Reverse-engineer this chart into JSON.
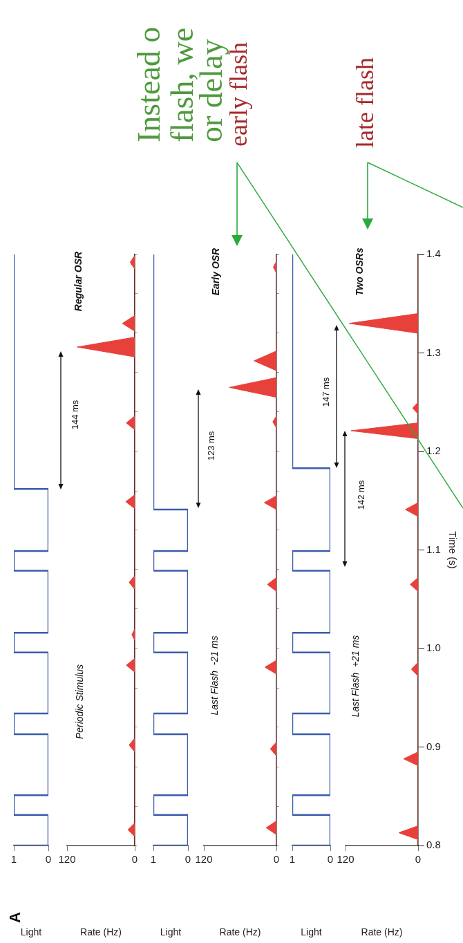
{
  "chart_data": [
    {
      "type": "step",
      "orientation": "horizontal",
      "xlabel": "Light",
      "ylim": [
        0.8,
        1.4
      ],
      "xlim": [
        1,
        0
      ],
      "xticks": [
        1,
        0
      ],
      "tick_labels": "x",
      "annotations": [
        "A"
      ],
      "x": [
        0.8,
        0.831,
        0.851,
        0.913,
        0.934,
        0.996,
        1.016,
        1.079,
        1.099,
        1.162,
        1.182,
        1.4
      ],
      "series": [
        {
          "color": "#3b5bad",
          "values": [
            1,
            0,
            1,
            0,
            1,
            0,
            1,
            0,
            1,
            0,
            1,
            1
          ]
        }
      ]
    },
    {
      "type": "area",
      "orientation": "horizontal",
      "xlabel": "Rate (Hz)",
      "ylim": [
        0.8,
        1.4
      ],
      "xlim": [
        120,
        0
      ],
      "xticks": [
        120,
        0
      ],
      "tick_labels": "x",
      "annotations": [
        "Periodic Stimulus",
        "144 ms",
        "Regular OSR"
      ],
      "yticks": [
        {
          "value": 0.8,
          "label": null
        },
        {
          "value": 0.84,
          "label": null
        },
        {
          "value": 0.88,
          "label": null
        },
        {
          "value": 0.92,
          "label": null
        },
        {
          "value": 0.96,
          "label": null
        },
        {
          "value": 1,
          "label": null
        },
        {
          "value": 1.04,
          "label": null
        },
        {
          "value": 1.08,
          "label": null
        },
        {
          "value": 1.12,
          "label": null
        },
        {
          "value": 1.16,
          "label": null
        },
        {
          "value": 1.2,
          "label": null
        },
        {
          "value": 1.24,
          "label": null
        },
        {
          "value": 1.28,
          "label": null
        },
        {
          "value": 1.32,
          "label": null
        },
        {
          "value": 1.36,
          "label": null
        },
        {
          "value": 1.4,
          "label": null
        }
      ],
      "x": [
        0.8,
        0.809,
        0.816,
        0.823,
        0.895,
        0.902,
        0.909,
        0.976,
        0.983,
        0.99,
        1.008,
        1.014,
        1.02,
        1.06,
        1.067,
        1.074,
        1.142,
        1.149,
        1.156,
        1.222,
        1.229,
        1.236,
        1.296,
        1.306,
        1.316,
        1.322,
        1.33,
        1.338,
        1.385,
        1.392,
        1.399,
        1.4
      ],
      "series": [
        {
          "color": "#e8403a",
          "values": [
            0,
            0,
            12,
            0,
            0,
            10,
            0,
            0,
            15,
            0,
            0,
            5,
            0,
            0,
            10,
            0,
            0,
            16,
            0,
            0,
            15,
            0,
            0,
            102,
            0,
            0,
            22,
            0,
            0,
            8,
            0,
            0
          ]
        }
      ]
    },
    {
      "type": "step",
      "orientation": "horizontal",
      "xlabel": "Light",
      "ylim": [
        0.8,
        1.4
      ],
      "xlim": [
        1,
        0
      ],
      "xticks": [
        1,
        0
      ],
      "tick_labels": "x",
      "annotations": [
        "Instead o",
        "flash, we",
        "or delay",
        "early flash"
      ],
      "x": [
        0.8,
        0.831,
        0.851,
        0.913,
        0.934,
        0.996,
        1.016,
        1.079,
        1.099,
        1.141,
        1.16,
        1.4
      ],
      "series": [
        {
          "color": "#3b5bad",
          "values": [
            1,
            0,
            1,
            0,
            1,
            0,
            1,
            0,
            1,
            0,
            1,
            1
          ]
        }
      ]
    },
    {
      "type": "area",
      "orientation": "horizontal",
      "xlabel": "Rate (Hz)",
      "ylim": [
        0.8,
        1.4
      ],
      "xlim": [
        120,
        0
      ],
      "xticks": [
        120,
        0
      ],
      "tick_labels": "x",
      "annotations": [
        "Last Flash  -21 ms",
        "123 ms",
        "Early OSR"
      ],
      "yticks": [
        {
          "value": 0.8,
          "label": null
        },
        {
          "value": 0.84,
          "label": null
        },
        {
          "value": 0.88,
          "label": null
        },
        {
          "value": 0.92,
          "label": null
        },
        {
          "value": 0.96,
          "label": null
        },
        {
          "value": 1,
          "label": null
        },
        {
          "value": 1.04,
          "label": null
        },
        {
          "value": 1.08,
          "label": null
        },
        {
          "value": 1.12,
          "label": null
        },
        {
          "value": 1.16,
          "label": null
        },
        {
          "value": 1.2,
          "label": null
        },
        {
          "value": 1.24,
          "label": null
        },
        {
          "value": 1.28,
          "label": null
        },
        {
          "value": 1.32,
          "label": null
        },
        {
          "value": 1.36,
          "label": null
        },
        {
          "value": 1.4,
          "label": null
        }
      ],
      "x": [
        0.8,
        0.811,
        0.818,
        0.825,
        0.891,
        0.898,
        0.905,
        0.974,
        0.981,
        0.988,
        1.058,
        1.065,
        1.072,
        1.141,
        1.148,
        1.155,
        1.224,
        1.23,
        1.236,
        1.255,
        1.265,
        1.275,
        1.282,
        1.292,
        1.302,
        1.381,
        1.387,
        1.393,
        1.4
      ],
      "series": [
        {
          "color": "#e8403a",
          "values": [
            0,
            0,
            17,
            0,
            0,
            10,
            0,
            0,
            19,
            0,
            0,
            15,
            0,
            0,
            20,
            0,
            0,
            6,
            0,
            0,
            78,
            0,
            0,
            37,
            0,
            0,
            5,
            0,
            0
          ]
        }
      ]
    },
    {
      "type": "step",
      "orientation": "horizontal",
      "xlabel": "Light",
      "ylim": [
        0.8,
        1.4
      ],
      "xlim": [
        1,
        0
      ],
      "xticks": [
        1,
        0
      ],
      "tick_labels": "x",
      "annotations": [
        "late flash"
      ],
      "x": [
        0.8,
        0.831,
        0.851,
        0.913,
        0.934,
        0.996,
        1.016,
        1.079,
        1.099,
        1.183,
        1.202,
        1.4
      ],
      "series": [
        {
          "color": "#3b5bad",
          "values": [
            1,
            0,
            1,
            0,
            1,
            0,
            1,
            0,
            1,
            0,
            1,
            1
          ]
        }
      ]
    },
    {
      "type": "area",
      "orientation": "horizontal",
      "xlabel": "Rate (Hz)",
      "ylabel": "Time (s)",
      "ylim": [
        0.8,
        1.4
      ],
      "xlim": [
        120,
        0
      ],
      "xticks": [
        120,
        0
      ],
      "annotations": [
        "Last Flash  +21 ms",
        "147 ms",
        "142 ms",
        "Two OSRs"
      ],
      "yticks": [
        0.8,
        0.9,
        {
          "value": 1,
          "label": "1.0"
        },
        1.1,
        1.2,
        1.3,
        1.4
      ],
      "x": [
        0.8,
        0.806,
        0.813,
        0.82,
        0.881,
        0.888,
        0.895,
        0.972,
        0.979,
        0.986,
        1.058,
        1.065,
        1.072,
        1.134,
        1.141,
        1.148,
        1.213,
        1.221,
        1.229,
        1.238,
        1.244,
        1.25,
        1.32,
        1.33,
        1.34,
        1.4
      ],
      "series": [
        {
          "color": "#e8403a",
          "values": [
            0,
            0,
            32,
            0,
            0,
            24,
            0,
            0,
            11,
            0,
            0,
            13,
            0,
            0,
            21,
            0,
            0,
            111,
            0,
            0,
            9,
            0,
            0,
            114,
            0,
            0
          ]
        }
      ]
    }
  ]
}
